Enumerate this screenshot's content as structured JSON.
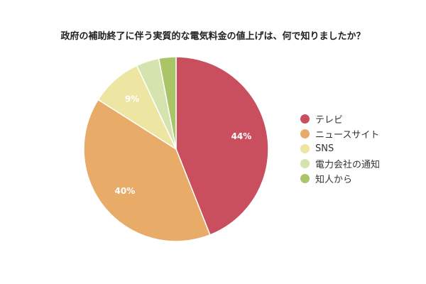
{
  "chart_data": {
    "type": "pie",
    "title": "政府の補助終了に伴う実質的な電気料金の値上げは、何で知りましたか？",
    "slices": [
      {
        "label": "テレビ",
        "value": 44,
        "data_label": "44%",
        "color": "#c94f5f"
      },
      {
        "label": "ニュースサイト",
        "value": 40,
        "data_label": "40%",
        "color": "#e8ab68"
      },
      {
        "label": "SNS",
        "value": 9,
        "data_label": "9%",
        "color": "#ede5a2"
      },
      {
        "label": "電力会社の通知",
        "value": 4,
        "data_label": "",
        "color": "#d5e3ae"
      },
      {
        "label": "知人から",
        "value": 3,
        "data_label": "",
        "color": "#a9c567"
      }
    ],
    "legend_position": "right",
    "start_angle": "12 o'clock, clockwise"
  }
}
